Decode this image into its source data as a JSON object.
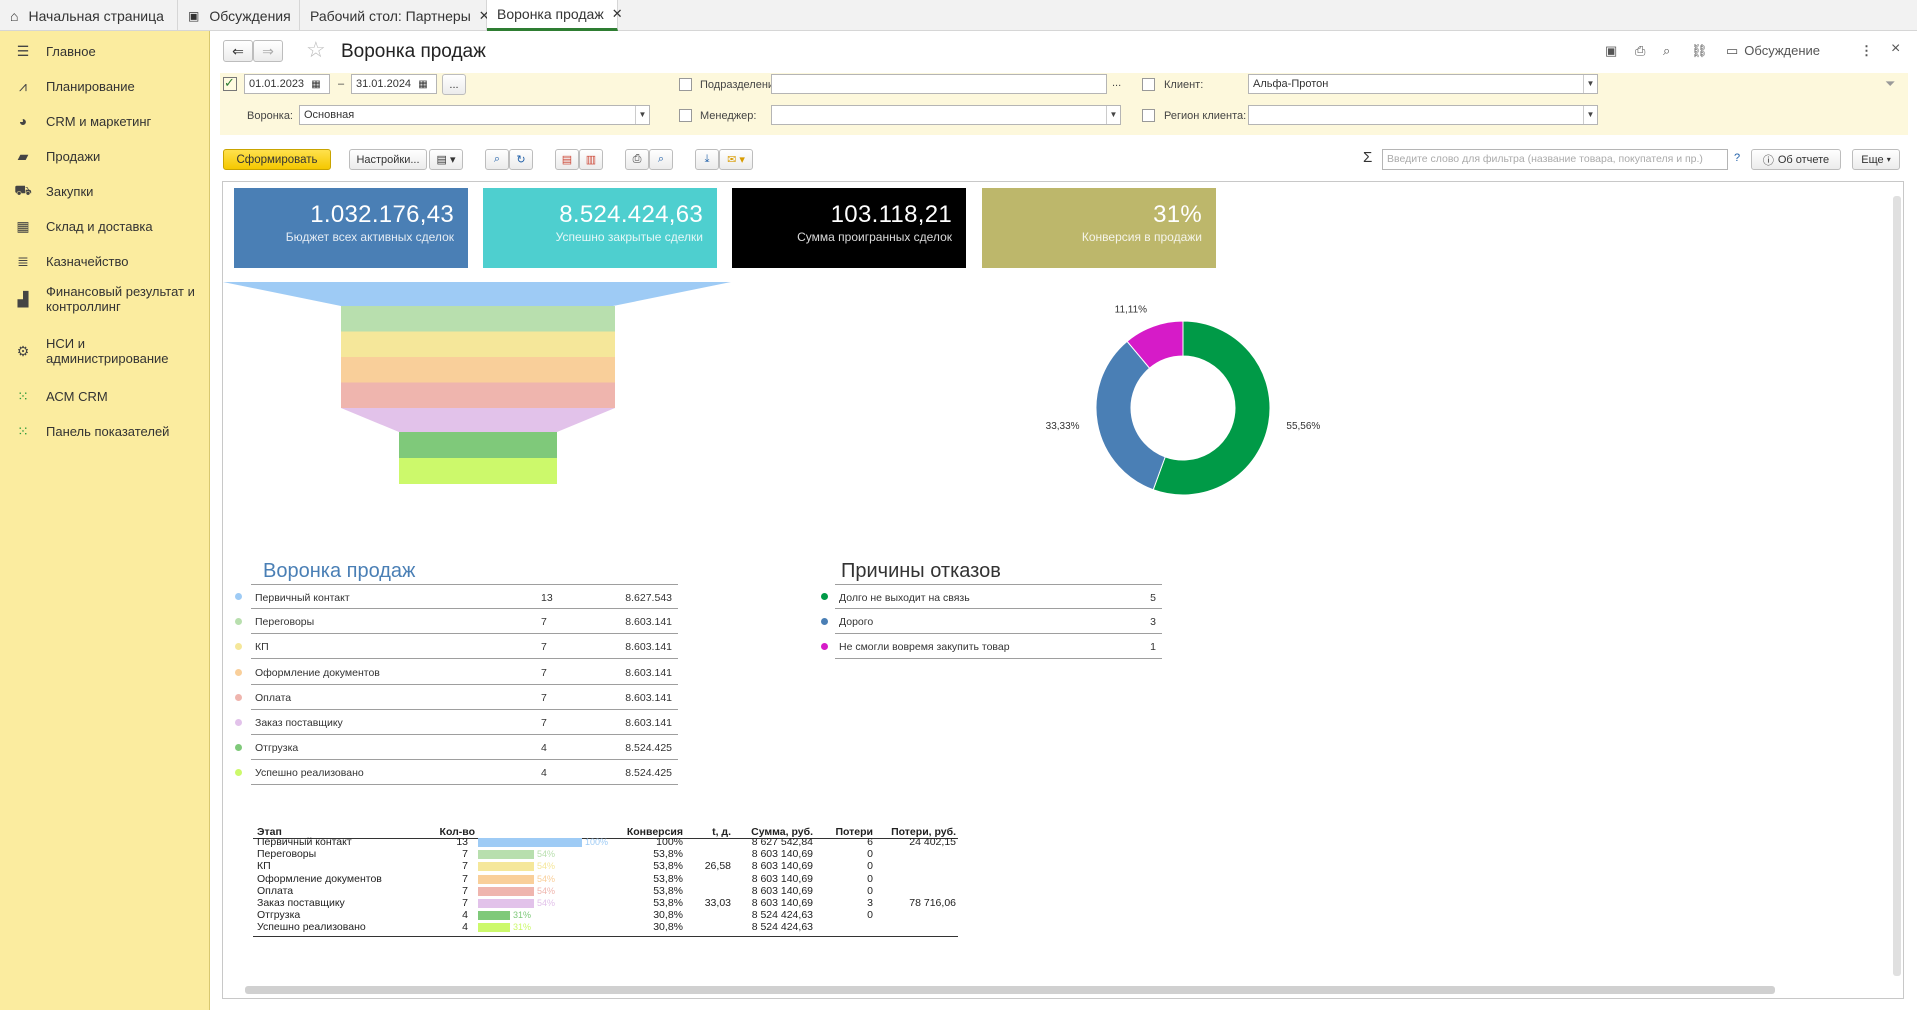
{
  "tabs": [
    {
      "label": "Начальная страница"
    },
    {
      "label": "Обсуждения"
    },
    {
      "label": "Рабочий стол: Партнеры"
    },
    {
      "label": "Воронка продаж"
    }
  ],
  "sidebar": {
    "items": [
      {
        "label": "Главное"
      },
      {
        "label": "Планирование"
      },
      {
        "label": "CRM и маркетинг"
      },
      {
        "label": "Продажи"
      },
      {
        "label": "Закупки"
      },
      {
        "label": "Склад и доставка"
      },
      {
        "label": "Казначейство"
      },
      {
        "label": "Финансовый результат и контроллинг"
      },
      {
        "label": "НСИ и администрирование"
      },
      {
        "label": "АСМ CRM"
      },
      {
        "label": "Панель показателей"
      }
    ]
  },
  "header": {
    "title": "Воронка продаж",
    "discussion_label": "Обсуждение",
    "more_glyph": "⋮",
    "close_glyph": "×"
  },
  "filters": {
    "date_from": "01.01.2023",
    "date_sep": "–",
    "date_to": "31.01.2024",
    "dots": "...",
    "podrazdelenie_label": "Подразделение:",
    "podrazdelenie_value": "",
    "client_label": "Клиент:",
    "client_value": "Альфа-Протон",
    "funnel_label": "Воронка:",
    "funnel_value": "Основная",
    "manager_label": "Менеджер:",
    "manager_value": "",
    "region_label": "Регион клиента:",
    "region_value": ""
  },
  "commandbar": {
    "generate": "Сформировать",
    "settings": "Настройки...",
    "search_placeholder": "Введите слово для фильтра (название товара, покупателя и пр.)",
    "help": "?",
    "about": "Об отчете",
    "more": "Еще"
  },
  "kpis": [
    {
      "value": "1.032.176,43",
      "caption": "Бюджет всех активных сделок",
      "color": "#4a7fb5"
    },
    {
      "value": "8.524.424,63",
      "caption": "Успешно закрытые сделки",
      "color": "#4ecfcf"
    },
    {
      "value": "103.118,21",
      "caption": "Сумма проигранных сделок",
      "color": "#000000"
    },
    {
      "value": "31%",
      "caption": "Конверсия в продажи",
      "color": "#bdb76b"
    }
  ],
  "funnel": {
    "title": "Воронка продаж",
    "stages": [
      {
        "name": "Первичный контакт",
        "count": "13",
        "sum": "8.627.543",
        "color": "#9ecbf5"
      },
      {
        "name": "Переговоры",
        "count": "7",
        "sum": "8.603.141",
        "color": "#b8dfae"
      },
      {
        "name": "КП",
        "count": "7",
        "sum": "8.603.141",
        "color": "#f5e79a"
      },
      {
        "name": "Оформление документов",
        "count": "7",
        "sum": "8.603.141",
        "color": "#f9cf9a"
      },
      {
        "name": "Оплата",
        "count": "7",
        "sum": "8.603.141",
        "color": "#efb5ae"
      },
      {
        "name": "Заказ поставщику",
        "count": "7",
        "sum": "8.603.141",
        "color": "#e2c2ea"
      },
      {
        "name": "Отгрузка",
        "count": "4",
        "sum": "8.524.425",
        "color": "#7fc97a"
      },
      {
        "name": "Успешно реализовано",
        "count": "4",
        "sum": "8.524.425",
        "color": "#ccf96b"
      }
    ]
  },
  "reasons": {
    "title": "Причины отказов",
    "items": [
      {
        "name": "Долго не выходит на связь",
        "count": "5",
        "color": "#009a47"
      },
      {
        "name": "Дорого",
        "count": "3",
        "color": "#4a7fb5"
      },
      {
        "name": "Не смогли вовремя закупить товар",
        "count": "1",
        "color": "#d61bc8"
      }
    ]
  },
  "chart_data": {
    "type": "pie",
    "labels": [
      "Долго не выходит на связь",
      "Дорого",
      "Не смогли вовремя закупить товар"
    ],
    "values": [
      55.56,
      33.33,
      11.11
    ],
    "value_labels": [
      "55,56%",
      "33,33%",
      "11,11%"
    ],
    "colors": [
      "#009a47",
      "#4a7fb5",
      "#d61bc8"
    ]
  },
  "table": {
    "headers": [
      "Этап",
      "Кол-во",
      "Конверсия",
      "t, д.",
      "Сумма, руб.",
      "Потери",
      "Потери, руб."
    ],
    "rows": [
      {
        "stage": "Первичный контакт",
        "count": "13",
        "bar_pct": "100%",
        "bar": 1.0,
        "conv": "100%",
        "t": "",
        "sum": "8 627 542,84",
        "loss": "6",
        "loss_sum": "24 402,15",
        "color": "#9ecbf5"
      },
      {
        "stage": "Переговоры",
        "count": "7",
        "bar_pct": "54%",
        "bar": 0.54,
        "conv": "53,8%",
        "t": "",
        "sum": "8 603 140,69",
        "loss": "0",
        "loss_sum": "",
        "color": "#b8dfae"
      },
      {
        "stage": "КП",
        "count": "7",
        "bar_pct": "54%",
        "bar": 0.54,
        "conv": "53,8%",
        "t": "26,58",
        "sum": "8 603 140,69",
        "loss": "0",
        "loss_sum": "",
        "color": "#f5e79a"
      },
      {
        "stage": "Оформление документов",
        "count": "7",
        "bar_pct": "54%",
        "bar": 0.54,
        "conv": "53,8%",
        "t": "",
        "sum": "8 603 140,69",
        "loss": "0",
        "loss_sum": "",
        "color": "#f9cf9a"
      },
      {
        "stage": "Оплата",
        "count": "7",
        "bar_pct": "54%",
        "bar": 0.54,
        "conv": "53,8%",
        "t": "",
        "sum": "8 603 140,69",
        "loss": "0",
        "loss_sum": "",
        "color": "#efb5ae"
      },
      {
        "stage": "Заказ поставщику",
        "count": "7",
        "bar_pct": "54%",
        "bar": 0.54,
        "conv": "53,8%",
        "t": "33,03",
        "sum": "8 603 140,69",
        "loss": "3",
        "loss_sum": "78 716,06",
        "color": "#e2c2ea"
      },
      {
        "stage": "Отгрузка",
        "count": "4",
        "bar_pct": "31%",
        "bar": 0.31,
        "conv": "30,8%",
        "t": "",
        "sum": "8 524 424,63",
        "loss": "0",
        "loss_sum": "",
        "color": "#7fc97a"
      },
      {
        "stage": "Успешно реализовано",
        "count": "4",
        "bar_pct": "31%",
        "bar": 0.31,
        "conv": "30,8%",
        "t": "",
        "sum": "8 524 424,63",
        "loss": "",
        "loss_sum": "",
        "color": "#ccf96b"
      }
    ]
  }
}
